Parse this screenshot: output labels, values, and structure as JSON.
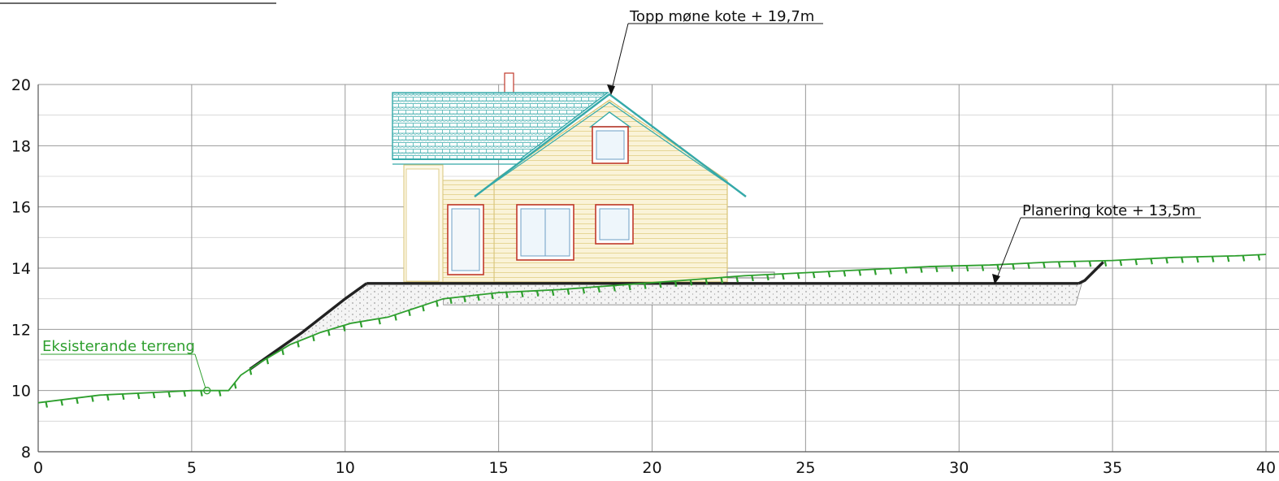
{
  "annotations": {
    "ridge": "Topp møne kote + 19,7m",
    "grading": "Planering kote + 13,5m",
    "existing": "Eksisterande terreng"
  },
  "axes": {
    "x_ticks": [
      "0",
      "5",
      "10",
      "15",
      "20",
      "25",
      "30",
      "35",
      "40"
    ],
    "y_ticks": [
      "8",
      "10",
      "12",
      "14",
      "16",
      "18",
      "20"
    ],
    "xlim": [
      0,
      40
    ],
    "ylim": [
      8,
      20
    ],
    "grid": true
  },
  "terrain": {
    "existing": [
      [
        0,
        9.6
      ],
      [
        2,
        9.85
      ],
      [
        4,
        9.95
      ],
      [
        5,
        10.0
      ],
      [
        5.6,
        10.0
      ],
      [
        6.2,
        10.0
      ],
      [
        6.6,
        10.5
      ],
      [
        7.2,
        10.9
      ],
      [
        8.2,
        11.5
      ],
      [
        9.2,
        11.9
      ],
      [
        10.2,
        12.2
      ],
      [
        11.4,
        12.4
      ],
      [
        12.3,
        12.7
      ],
      [
        13.2,
        13.0
      ],
      [
        15,
        13.2
      ],
      [
        17,
        13.3
      ],
      [
        19,
        13.45
      ],
      [
        21,
        13.6
      ],
      [
        23,
        13.75
      ],
      [
        25,
        13.85
      ],
      [
        27,
        13.95
      ],
      [
        29,
        14.05
      ],
      [
        31,
        14.1
      ],
      [
        33,
        14.2
      ],
      [
        35,
        14.25
      ],
      [
        37,
        14.35
      ],
      [
        39,
        14.4
      ],
      [
        40,
        14.45
      ]
    ],
    "graded_level": 13.5,
    "fill_slope": [
      [
        6.9,
        10.7
      ],
      [
        8.6,
        11.9
      ],
      [
        10.0,
        13.0
      ],
      [
        10.7,
        13.5
      ]
    ],
    "cut_slope": [
      [
        33.9,
        13.5
      ],
      [
        34.1,
        13.6
      ],
      [
        34.7,
        14.2
      ]
    ],
    "fill_bottom": [
      [
        13.2,
        12.8
      ],
      [
        33.8,
        12.8
      ],
      [
        34.0,
        13.5
      ]
    ],
    "ridge_level": 19.7
  },
  "colors": {
    "terrain": "#2e9f2e",
    "grading": "#222222",
    "roof": "#35a9a9",
    "window_frame": "#c0392b",
    "wall": "#efe3b0",
    "grid": "#b8b8b8"
  }
}
